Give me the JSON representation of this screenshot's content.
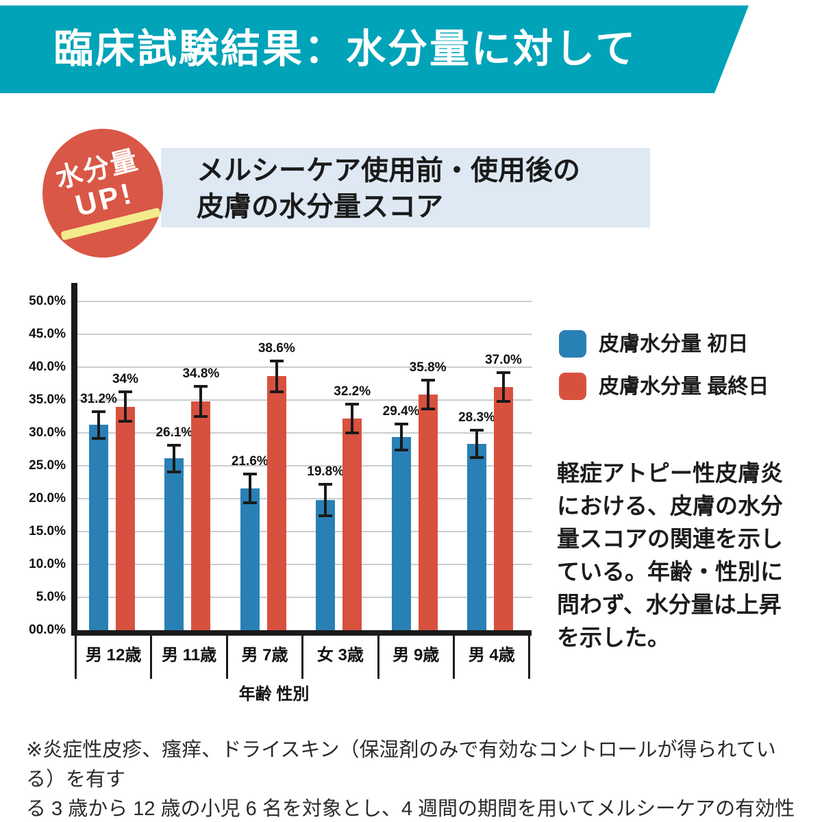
{
  "header": {
    "title": "臨床試験結果：水分量に対して",
    "bg_color": "#00a3b8"
  },
  "badge": {
    "line1": "水分量",
    "line2": "UP!",
    "bg_color": "#d95746",
    "underline_color": "#f3eb8c"
  },
  "subtitle": {
    "line1": "メルシーケア使用前・使用後の",
    "line2": "皮膚の水分量スコア",
    "bg_color": "#dee9f4"
  },
  "legend": [
    {
      "label": "皮膚水分量 初日",
      "color": "#2980b5"
    },
    {
      "label": "皮膚水分量 最終日",
      "color": "#d8513f"
    }
  ],
  "description": "軽症アトピー性皮膚炎\nにおける、皮膚の水分\n量スコアの関連を示し\nている。年齢・性別に\n問わず、水分量は上昇\nを示した。",
  "footnote": "※炎症性皮疹、瘙痒、ドライスキン（保湿剤のみで有効なコントロールが得られている）を有す\nる 3 歳から 12 歳の小児 6 名を対象とし、4 週間の期間を用いてメルシーケアの有効性を示した。",
  "chart_data": {
    "type": "bar",
    "title": "メルシーケア使用前・使用後の皮膚の水分量スコア",
    "xlabel": "年齢 性別",
    "ylabel": "",
    "ylim": [
      0,
      50
    ],
    "ytick_step": 5,
    "yticks": [
      "50.0%",
      "45.0%",
      "40.0%",
      "35.0%",
      "30.0%",
      "25.0%",
      "20.0%",
      "15.0%",
      "10.0%",
      "5.0%",
      "00.0%"
    ],
    "grid": true,
    "legend_position": "right",
    "categories": [
      "男 12歳",
      "男 11歳",
      "男 7歳",
      "女 3歳",
      "男 9歳",
      "男 4歳"
    ],
    "series": [
      {
        "name": "皮膚水分量 初日",
        "color": "#2980b5",
        "values": [
          31.2,
          26.1,
          21.6,
          19.8,
          29.4,
          28.3
        ],
        "labels": [
          "31.2%",
          "26.1%",
          "21.6%",
          "19.8%",
          "29.4%",
          "28.3%"
        ],
        "errors": [
          2.0,
          2.0,
          2.2,
          2.4,
          2.0,
          2.1
        ]
      },
      {
        "name": "皮膚水分量 最終日",
        "color": "#d8513f",
        "values": [
          34,
          34.8,
          38.6,
          32.2,
          35.8,
          37.0
        ],
        "labels": [
          "34%",
          "34.8%",
          "38.6%",
          "32.2%",
          "35.8%",
          "37.0%"
        ],
        "errors": [
          2.2,
          2.3,
          2.3,
          2.2,
          2.2,
          2.2
        ]
      }
    ]
  }
}
